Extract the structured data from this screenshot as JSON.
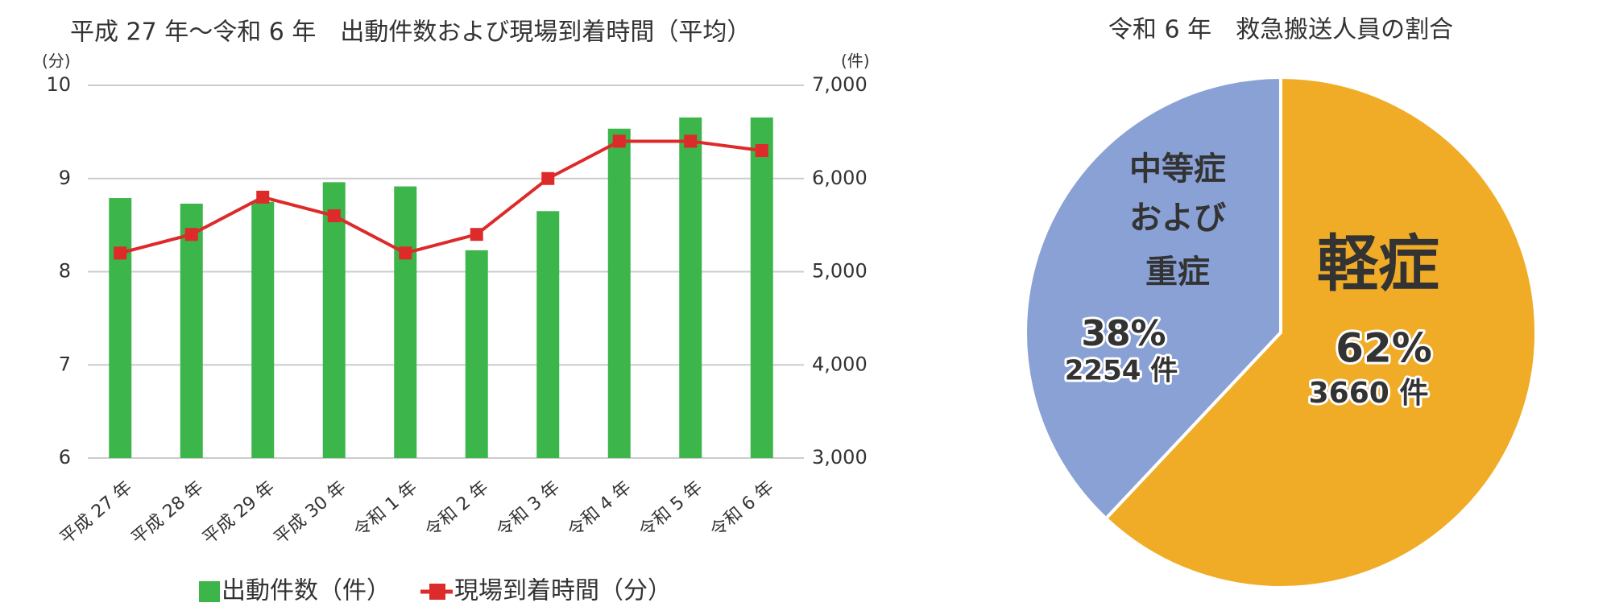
{
  "chart_data": [
    {
      "type": "bar-line",
      "title": "平成 27 年〜令和 6 年　出動件数および現場到着時間（平均）",
      "y_unit": "(分)",
      "y2_unit": "(件)",
      "categories": [
        "平成 27 年",
        "平成 28 年",
        "平成 29 年",
        "平成 30 年",
        "令和 1 年",
        "令和 2 年",
        "令和 3 年",
        "令和 4 年",
        "令和 5 年",
        "令和 6 年"
      ],
      "series": [
        {
          "name": "出動件数（件）",
          "type": "bar",
          "axis": "y2",
          "color": "#3cb54a",
          "values": [
            5790,
            5730,
            5750,
            5960,
            5915,
            5230,
            5650,
            6535,
            6655,
            6655
          ]
        },
        {
          "name": "現場到着時間（分）",
          "type": "line",
          "color": "#dd2a2a",
          "values": [
            8.2,
            8.4,
            8.8,
            8.6,
            8.2,
            8.4,
            9.0,
            9.4,
            9.4,
            9.3
          ]
        }
      ],
      "ylim": [
        6,
        10
      ],
      "yticks": [
        6,
        7,
        8,
        9,
        10
      ],
      "y2lim": [
        3000,
        7000
      ],
      "y2ticks": [
        {
          "value": 3000,
          "label": "3,000"
        },
        {
          "value": 4000,
          "label": "4,000"
        },
        {
          "value": 5000,
          "label": "5,000"
        },
        {
          "value": 6000,
          "label": "6,000"
        },
        {
          "value": 7000,
          "label": "7,000"
        }
      ],
      "grid": true
    },
    {
      "type": "pie",
      "title": "令和 6 年　救急搬送人員の割合",
      "categories": [
        "軽症",
        [
          "中等症",
          "および",
          "重症"
        ]
      ],
      "values": [
        62,
        38
      ],
      "value_labels": [
        "62%",
        "38%"
      ],
      "counts": [
        3660,
        2254
      ],
      "count_labels": [
        "3660 件",
        "2254 件"
      ],
      "colors": [
        "#f0ac27",
        "#8aa1d6"
      ]
    }
  ]
}
